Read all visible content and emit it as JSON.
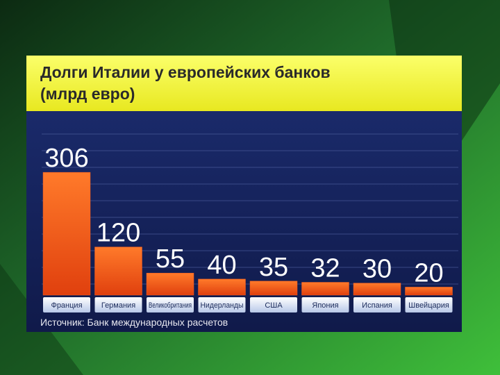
{
  "chart_data": {
    "type": "bar",
    "title": "Долги Италии у европейских банков",
    "subtitle": "(млрд евро)",
    "categories": [
      "Франция",
      "Германия",
      "Великобритания",
      "Нидерланды",
      "США",
      "Япония",
      "Испания",
      "Швейцария"
    ],
    "values": [
      306,
      120,
      55,
      40,
      35,
      32,
      30,
      20
    ],
    "color": "#f05a1e",
    "source": "Источник: Банк международных расчетов"
  }
}
